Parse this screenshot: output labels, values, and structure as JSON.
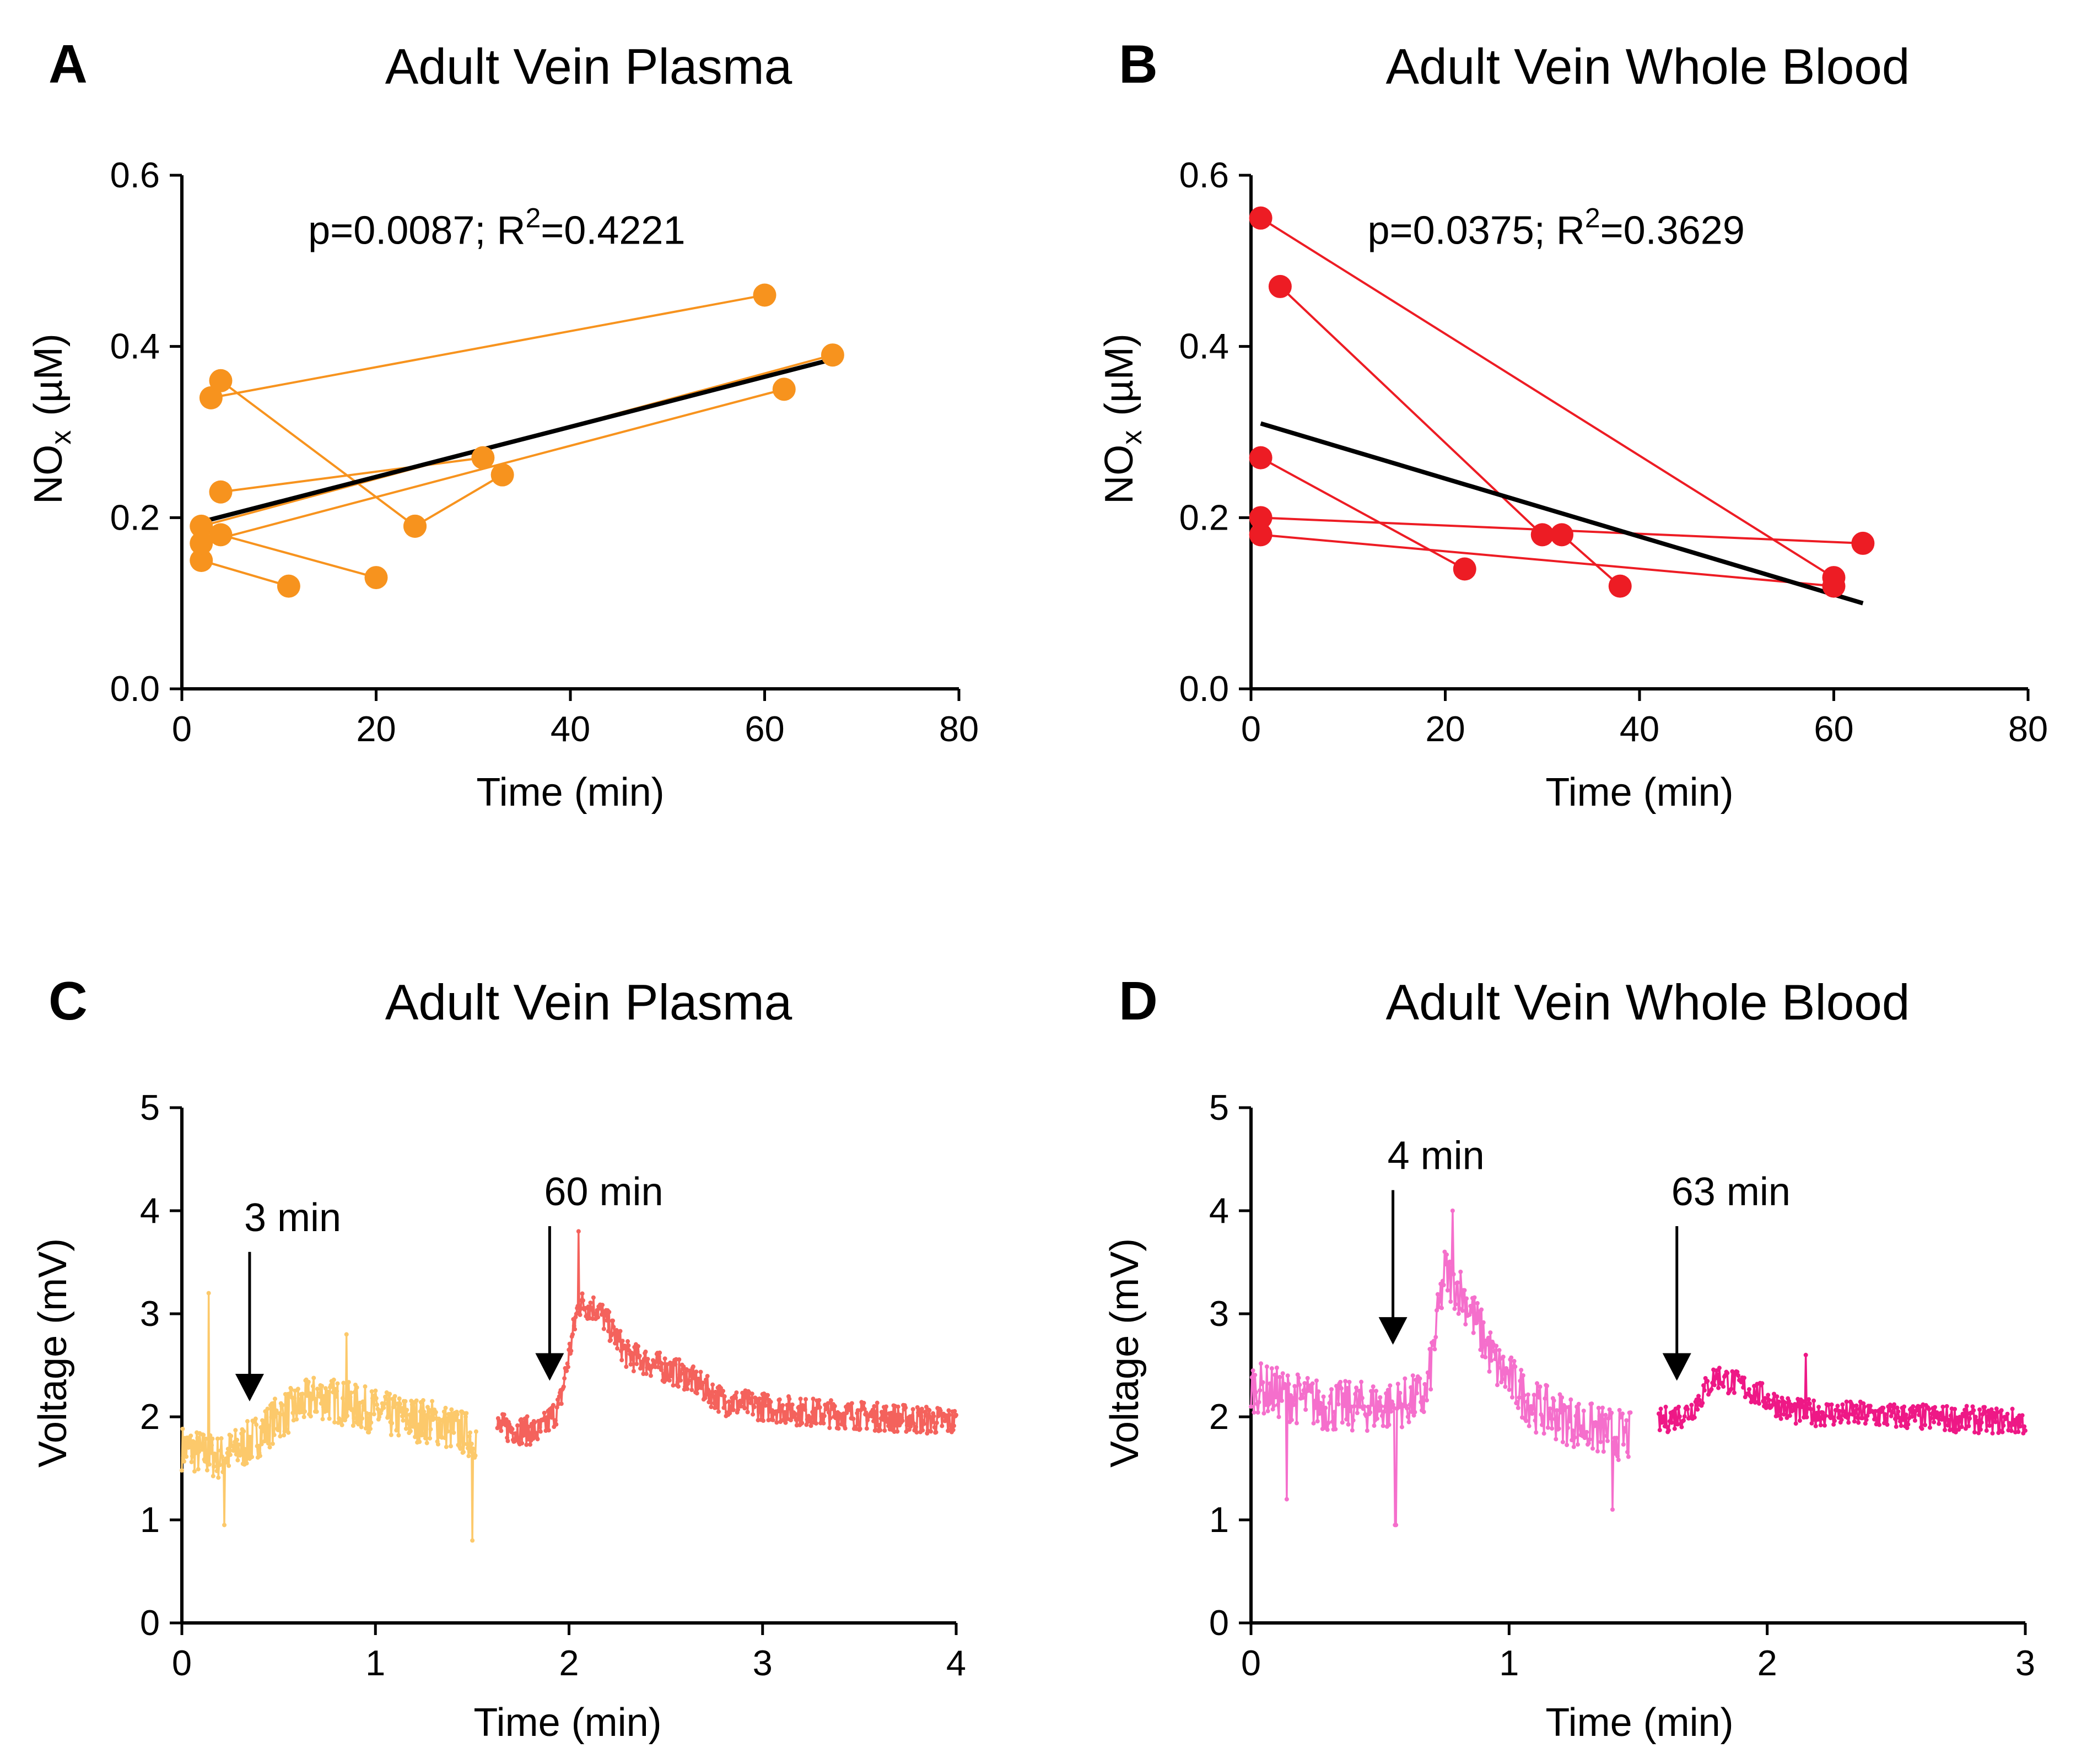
{
  "chart_data": [
    {
      "type": "scatter",
      "letter": "A",
      "title": "Adult Vein Plasma",
      "xlabel": "Time (min)",
      "ylabel": {
        "main": "NO",
        "sub": "x",
        "unit": "(µM)"
      },
      "xlim": [
        0,
        80
      ],
      "ylim": [
        0,
        0.6
      ],
      "xticks": [
        0,
        20,
        40,
        60,
        80
      ],
      "yticks": [
        0.0,
        0.2,
        0.4,
        0.6
      ],
      "ytick_labels": [
        "0.0",
        "0.2",
        "0.4",
        "0.6"
      ],
      "annotation": {
        "text": "p=0.0087; R",
        "sup": "2",
        "tail": "=0.4221",
        "x": 13,
        "y": 0.52
      },
      "color": "#f7931e",
      "fit": {
        "x": [
          2,
          67
        ],
        "y": [
          0.195,
          0.385
        ],
        "color": "#000000"
      },
      "pairs": [
        {
          "x": [
            3,
            60
          ],
          "y": [
            0.34,
            0.46
          ]
        },
        {
          "x": [
            4,
            24
          ],
          "y": [
            0.36,
            0.19
          ]
        },
        {
          "x": [
            4,
            31
          ],
          "y": [
            0.23,
            0.27
          ]
        },
        {
          "x": [
            2,
            67
          ],
          "y": [
            0.19,
            0.39
          ]
        },
        {
          "x": [
            4,
            20
          ],
          "y": [
            0.18,
            0.13
          ]
        },
        {
          "x": [
            2,
            11
          ],
          "y": [
            0.15,
            0.12
          ]
        },
        {
          "x": [
            2,
            62
          ],
          "y": [
            0.17,
            0.35
          ]
        },
        {
          "x": [
            24,
            33
          ],
          "y": [
            0.19,
            0.25
          ]
        }
      ]
    },
    {
      "type": "scatter",
      "letter": "B",
      "title": "Adult Vein Whole Blood",
      "xlabel": "Time (min)",
      "ylabel": {
        "main": "NO",
        "sub": "x",
        "unit": "(µM)"
      },
      "xlim": [
        0,
        80
      ],
      "ylim": [
        0,
        0.6
      ],
      "xticks": [
        0,
        20,
        40,
        60,
        80
      ],
      "yticks": [
        0.0,
        0.2,
        0.4,
        0.6
      ],
      "ytick_labels": [
        "0.0",
        "0.2",
        "0.4",
        "0.6"
      ],
      "annotation": {
        "text": "p=0.0375; R",
        "sup": "2",
        "tail": "=0.3629",
        "x": 12,
        "y": 0.52
      },
      "color": "#ed1c24",
      "fit": {
        "x": [
          1,
          63
        ],
        "y": [
          0.31,
          0.1
        ],
        "color": "#000000"
      },
      "pairs": [
        {
          "x": [
            1,
            60
          ],
          "y": [
            0.55,
            0.13
          ]
        },
        {
          "x": [
            3,
            30
          ],
          "y": [
            0.47,
            0.18
          ]
        },
        {
          "x": [
            1,
            22
          ],
          "y": [
            0.27,
            0.14
          ]
        },
        {
          "x": [
            1,
            63
          ],
          "y": [
            0.2,
            0.17
          ]
        },
        {
          "x": [
            1,
            60
          ],
          "y": [
            0.18,
            0.12
          ]
        },
        {
          "x": [
            32,
            38
          ],
          "y": [
            0.18,
            0.12
          ]
        }
      ]
    },
    {
      "type": "line",
      "letter": "C",
      "title": "Adult Vein Plasma",
      "xlabel": "Time (min)",
      "ylabel": {
        "main": "Voltage (mV)"
      },
      "xlim": [
        0,
        4
      ],
      "ylim": [
        0,
        5
      ],
      "xticks": [
        0,
        1,
        2,
        3,
        4
      ],
      "yticks": [
        0,
        1,
        2,
        3,
        4,
        5
      ],
      "ytick_labels": [
        "0",
        "1",
        "2",
        "3",
        "4",
        "5"
      ],
      "series": [
        {
          "name": "3 min",
          "color": "#fcc96b",
          "x_range": [
            0,
            1.52
          ],
          "anchors": [
            [
              0,
              1.7
            ],
            [
              0.2,
              1.6
            ],
            [
              0.35,
              1.75
            ],
            [
              0.5,
              2.0
            ],
            [
              0.7,
              2.2
            ],
            [
              0.9,
              2.1
            ],
            [
              1.1,
              2.0
            ],
            [
              1.3,
              1.95
            ],
            [
              1.52,
              1.8
            ]
          ],
          "noise": 0.22,
          "spikes": [
            [
              0.14,
              3.2
            ],
            [
              0.22,
              0.95
            ],
            [
              0.85,
              2.8
            ],
            [
              1.5,
              0.8
            ]
          ]
        },
        {
          "name": "60 min",
          "color": "#f4625c",
          "x_range": [
            1.63,
            4.0
          ],
          "anchors": [
            [
              1.63,
              1.9
            ],
            [
              1.85,
              1.85
            ],
            [
              1.95,
              2.1
            ],
            [
              2.05,
              3.1
            ],
            [
              2.15,
              3.05
            ],
            [
              2.3,
              2.6
            ],
            [
              2.6,
              2.4
            ],
            [
              2.8,
              2.15
            ],
            [
              3.2,
              2.05
            ],
            [
              4.0,
              1.95
            ]
          ],
          "noise": 0.14,
          "spikes": [
            [
              2.05,
              3.8
            ]
          ]
        }
      ],
      "arrows": [
        {
          "label": "3 min",
          "x": 0.35,
          "y_top": 3.6,
          "y_tip": 2.15
        },
        {
          "label": "60 min",
          "x": 1.9,
          "y_top": 3.85,
          "y_tip": 2.35
        }
      ]
    },
    {
      "type": "line",
      "letter": "D",
      "title": "Adult Vein Whole Blood",
      "xlabel": "Time (min)",
      "ylabel": {
        "main": "Voltage (mV)"
      },
      "xlim": [
        0,
        3
      ],
      "ylim": [
        0,
        5
      ],
      "xticks": [
        0,
        1,
        2,
        3
      ],
      "yticks": [
        0,
        1,
        2,
        3,
        4,
        5
      ],
      "ytick_labels": [
        "0",
        "1",
        "2",
        "3",
        "4",
        "5"
      ],
      "series": [
        {
          "name": "4 min",
          "color": "#f56fcc",
          "x_range": [
            0,
            1.47
          ],
          "anchors": [
            [
              0,
              2.3
            ],
            [
              0.3,
              2.1
            ],
            [
              0.55,
              2.1
            ],
            [
              0.68,
              2.2
            ],
            [
              0.75,
              3.4
            ],
            [
              0.82,
              3.2
            ],
            [
              0.95,
              2.5
            ],
            [
              1.1,
              2.1
            ],
            [
              1.3,
              1.9
            ],
            [
              1.47,
              1.8
            ]
          ],
          "noise": 0.25,
          "spikes": [
            [
              0.56,
              0.95
            ],
            [
              0.78,
              4.0
            ],
            [
              0.14,
              1.2
            ],
            [
              1.4,
              1.1
            ]
          ]
        },
        {
          "name": "63 min",
          "color": "#ee1886",
          "x_range": [
            1.58,
            3.0
          ],
          "anchors": [
            [
              1.58,
              1.95
            ],
            [
              1.7,
              2.05
            ],
            [
              1.8,
              2.4
            ],
            [
              1.9,
              2.3
            ],
            [
              2.1,
              2.05
            ],
            [
              3.0,
              1.95
            ]
          ],
          "noise": 0.13,
          "spikes": [
            [
              2.15,
              2.6
            ]
          ]
        }
      ],
      "arrows": [
        {
          "label": "4 min",
          "x": 0.55,
          "y_top": 4.2,
          "y_tip": 2.7
        },
        {
          "label": "63 min",
          "x": 1.65,
          "y_top": 3.85,
          "y_tip": 2.35
        }
      ]
    }
  ]
}
